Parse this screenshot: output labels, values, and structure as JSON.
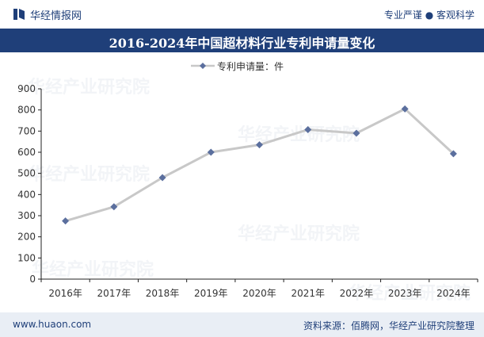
{
  "header": {
    "brand": "华经情报网",
    "tagline": "专业严谨 ● 客观科学"
  },
  "title": "2016-2024年中国超材料行业专利申请量变化",
  "footer": {
    "website": "www.huaon.com",
    "source": "资料来源：佰腾网，华经产业研究院整理"
  },
  "watermark": {
    "text": "华经产业研究院",
    "url": "www.huaon.com"
  },
  "colors": {
    "brand": "#1f3f79",
    "line": "#c8c8c8",
    "marker": "#5b6f9e",
    "axis": "#222222"
  },
  "chart_data": {
    "type": "line",
    "categories": [
      "2016年",
      "2017年",
      "2018年",
      "2019年",
      "2020年",
      "2021年",
      "2022年",
      "2023年",
      "2024年"
    ],
    "series": [
      {
        "name": "专利申请量：件",
        "values": [
          275,
          342,
          480,
          600,
          635,
          707,
          690,
          805,
          593
        ]
      }
    ],
    "ylim": [
      0,
      900
    ],
    "yticks": [
      0,
      100,
      200,
      300,
      400,
      500,
      600,
      700,
      800,
      900
    ],
    "legend_position": "top-center",
    "grid": false
  }
}
